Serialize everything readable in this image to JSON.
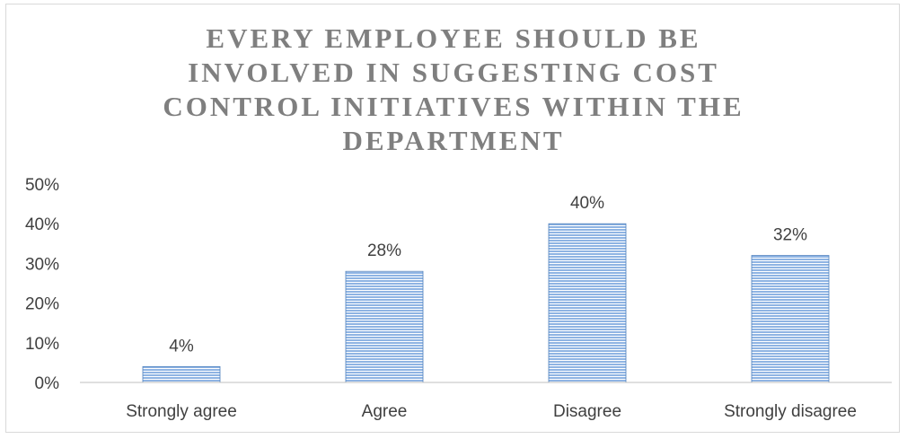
{
  "chart_data": {
    "type": "bar",
    "title_lines": [
      "EVERY EMPLOYEE SHOULD BE",
      "INVOLVED IN SUGGESTING COST",
      "CONTROL INITIATIVES WITHIN THE",
      "DEPARTMENT"
    ],
    "categories": [
      "Strongly agree",
      "Agree",
      "Disagree",
      "Strongly disagree"
    ],
    "values": [
      4,
      28,
      40,
      32
    ],
    "data_labels": [
      "4%",
      "28%",
      "40%",
      "32%"
    ],
    "y_ticks": [
      "0%",
      "10%",
      "20%",
      "30%",
      "40%",
      "50%"
    ],
    "ylim": [
      0,
      50
    ],
    "grid": false,
    "legend": "none",
    "colors": {
      "bar_fill": "#8fb4e3",
      "bar_stripe": "#ffffff",
      "bar_edge": "#4f81bd",
      "axis": "#bfbfbf",
      "text": "#404040"
    }
  }
}
